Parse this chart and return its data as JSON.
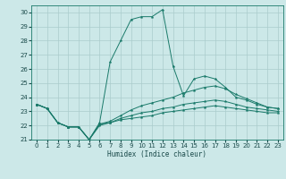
{
  "title": "",
  "xlabel": "Humidex (Indice chaleur)",
  "bg_color": "#cce8e8",
  "grid_color": "#aacccc",
  "line_color": "#1a7a6a",
  "ylim": [
    21,
    30.5
  ],
  "xlim": [
    -0.5,
    23.5
  ],
  "yticks": [
    21,
    22,
    23,
    24,
    25,
    26,
    27,
    28,
    29,
    30
  ],
  "xticks": [
    0,
    1,
    2,
    3,
    4,
    5,
    6,
    7,
    8,
    9,
    10,
    11,
    12,
    13,
    14,
    15,
    16,
    17,
    18,
    19,
    20,
    21,
    22,
    23
  ],
  "series": [
    [
      23.5,
      23.2,
      22.2,
      21.9,
      21.9,
      21.0,
      22.2,
      26.5,
      28.0,
      29.5,
      29.7,
      29.7,
      30.2,
      26.2,
      24.1,
      25.3,
      25.5,
      25.3,
      24.7,
      24.0,
      23.8,
      23.5,
      23.3,
      23.2
    ],
    [
      23.5,
      23.2,
      22.2,
      21.9,
      21.9,
      21.0,
      22.1,
      22.3,
      22.7,
      23.1,
      23.4,
      23.6,
      23.8,
      24.0,
      24.3,
      24.5,
      24.7,
      24.8,
      24.6,
      24.2,
      23.9,
      23.6,
      23.3,
      23.2
    ],
    [
      23.5,
      23.2,
      22.2,
      21.9,
      21.9,
      21.0,
      22.1,
      22.2,
      22.5,
      22.7,
      22.9,
      23.0,
      23.2,
      23.3,
      23.5,
      23.6,
      23.7,
      23.8,
      23.7,
      23.5,
      23.3,
      23.2,
      23.1,
      23.0
    ],
    [
      23.5,
      23.2,
      22.2,
      21.9,
      21.9,
      21.0,
      22.0,
      22.2,
      22.4,
      22.5,
      22.6,
      22.7,
      22.9,
      23.0,
      23.1,
      23.2,
      23.3,
      23.4,
      23.3,
      23.2,
      23.1,
      23.0,
      22.9,
      22.9
    ]
  ]
}
